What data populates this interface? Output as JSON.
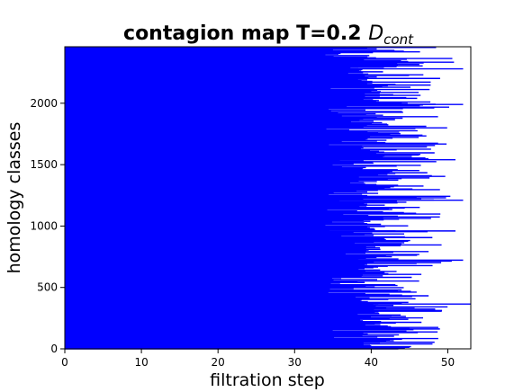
{
  "chart_data": {
    "type": "barcode",
    "title": "contagion map T=0.2 ",
    "title_math": "D",
    "title_math_sub": "cont",
    "xlabel": "filtration step",
    "ylabel": "homology classes",
    "xlim": [
      0,
      53
    ],
    "ylim": [
      0,
      2460
    ],
    "xticks": [
      0,
      10,
      20,
      30,
      40,
      50
    ],
    "yticks": [
      0,
      500,
      1000,
      1500,
      2000
    ],
    "bar_color": "#0000ff",
    "n_classes": 2460,
    "bars_start": 0,
    "bar_end_range": [
      31,
      53
    ],
    "solid_fill_until": 34,
    "longest_bars": [
      {
        "class": 365,
        "death": 53
      },
      {
        "class": 2280,
        "death": 52
      },
      {
        "class": 1990,
        "death": 52
      },
      {
        "class": 1210,
        "death": 52
      },
      {
        "class": 722,
        "death": 52
      },
      {
        "class": 1540,
        "death": 51
      },
      {
        "class": 960,
        "death": 51
      },
      {
        "class": 40,
        "death": 48
      }
    ]
  }
}
